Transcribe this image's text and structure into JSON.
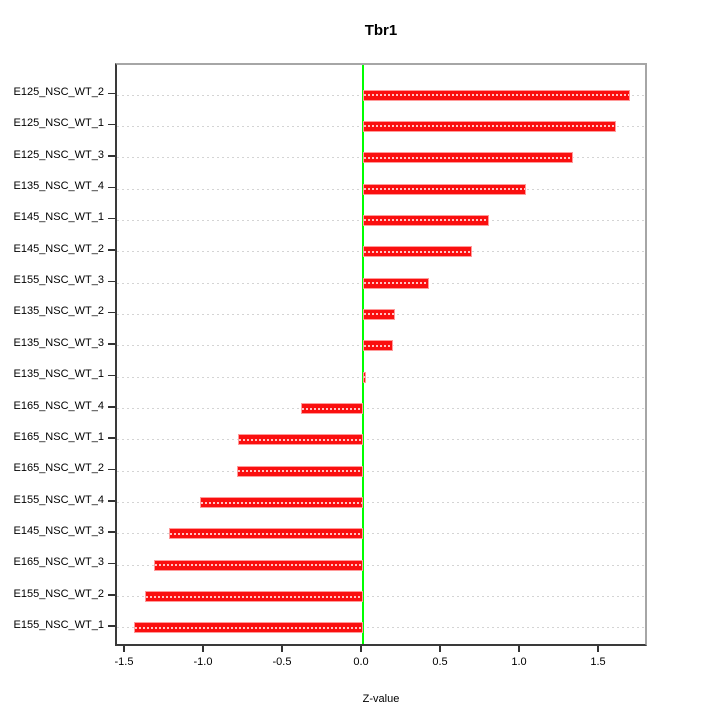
{
  "title": "Tbr1",
  "xlabel": "Z-value",
  "chart_data": {
    "type": "bar",
    "orientation": "horizontal",
    "title": "Tbr1",
    "xlabel": "Z-value",
    "ylabel": "",
    "categories": [
      "E125_NSC_WT_2",
      "E125_NSC_WT_1",
      "E125_NSC_WT_3",
      "E135_NSC_WT_4",
      "E145_NSC_WT_1",
      "E145_NSC_WT_2",
      "E155_NSC_WT_3",
      "E135_NSC_WT_2",
      "E135_NSC_WT_3",
      "E135_NSC_WT_1",
      "E165_NSC_WT_4",
      "E165_NSC_WT_1",
      "E165_NSC_WT_2",
      "E155_NSC_WT_4",
      "E145_NSC_WT_3",
      "E165_NSC_WT_3",
      "E155_NSC_WT_2",
      "E155_NSC_WT_1"
    ],
    "values": [
      1.69,
      1.6,
      1.33,
      1.03,
      0.8,
      0.69,
      0.42,
      0.2,
      0.19,
      0.02,
      -0.39,
      -0.79,
      -0.8,
      -1.03,
      -1.23,
      -1.32,
      -1.38,
      -1.45
    ],
    "xticks": [
      -1.5,
      -1.0,
      -0.5,
      0.0,
      0.5,
      1.0,
      1.5
    ],
    "xtick_labels": [
      "-1.5",
      "-1.0",
      "-0.5",
      "0.0",
      "0.5",
      "1.0",
      "1.5"
    ],
    "xlim": [
      -1.56,
      1.81
    ],
    "grid": "dotted horizontal line per category row",
    "legend": "none",
    "bar_color": "#ff0000",
    "zero_line_color": "#00ff00",
    "gridline_color": "#d4d4d4",
    "background_color": "#ffffff"
  }
}
